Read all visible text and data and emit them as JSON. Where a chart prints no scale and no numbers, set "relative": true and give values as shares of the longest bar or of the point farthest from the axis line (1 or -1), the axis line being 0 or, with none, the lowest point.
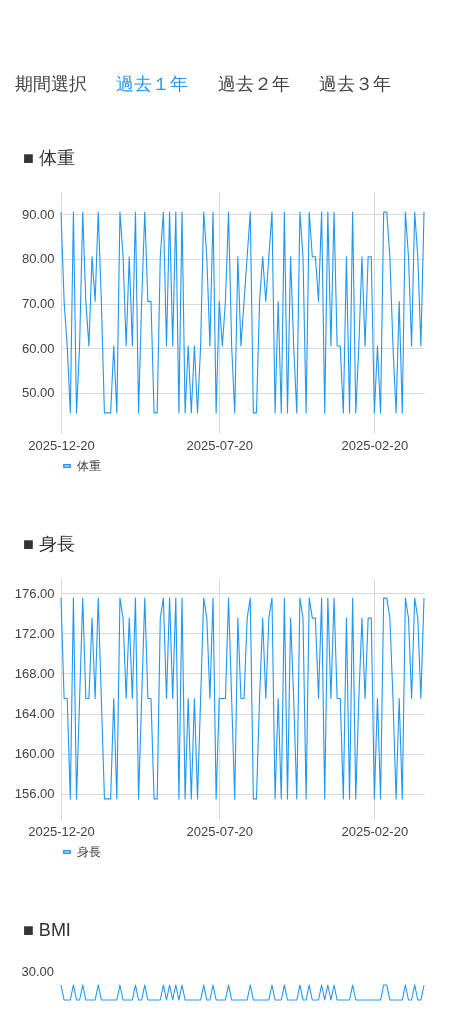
{
  "chart_data": [
    {
      "type": "other",
      "annotations": [
        "期間選択",
        "過去１年",
        "過去２年",
        "過去３年"
      ],
      "colors": [
        "#424242",
        "#2196f3",
        "#424242",
        "#424242"
      ]
    },
    {
      "type": "line",
      "title": "■ 体重",
      "x": [
        "2025-12-20",
        "2025-12-17",
        "2025-12-14",
        "2025-12-11",
        "2025-12-08",
        "2025-12-05",
        "2025-12-02",
        "2025-11-29",
        "2025-11-26",
        "2025-11-23",
        "2025-11-20",
        "2025-11-17",
        "2025-11-14",
        "2025-11-11",
        "2025-11-08",
        "2025-11-05",
        "2025-11-02",
        "2025-10-30",
        "2025-10-27",
        "2025-10-24",
        "2025-10-21",
        "2025-10-18",
        "2025-10-15",
        "2025-10-12",
        "2025-10-09",
        "2025-10-06",
        "2025-10-03",
        "2025-09-30",
        "2025-09-27",
        "2025-09-24",
        "2025-09-21",
        "2025-09-18",
        "2025-09-15",
        "2025-09-12",
        "2025-09-09",
        "2025-09-06",
        "2025-09-03",
        "2025-08-31",
        "2025-08-28",
        "2025-08-25",
        "2025-08-22",
        "2025-08-19",
        "2025-08-16",
        "2025-08-13",
        "2025-08-10",
        "2025-08-07",
        "2025-08-04",
        "2025-08-01",
        "2025-07-29",
        "2025-07-26",
        "2025-07-23",
        "2025-07-20",
        "2025-07-17",
        "2025-07-14",
        "2025-07-11",
        "2025-07-08",
        "2025-07-05",
        "2025-07-02",
        "2025-06-29",
        "2025-06-26",
        "2025-06-23",
        "2025-06-20",
        "2025-06-17",
        "2025-06-14",
        "2025-06-11",
        "2025-06-08",
        "2025-06-05",
        "2025-06-02",
        "2025-05-30",
        "2025-05-27",
        "2025-05-24",
        "2025-05-21",
        "2025-05-18",
        "2025-05-15",
        "2025-05-12",
        "2025-05-09",
        "2025-05-06",
        "2025-05-03",
        "2025-04-30",
        "2025-04-27",
        "2025-04-24",
        "2025-04-21",
        "2025-04-18",
        "2025-04-15",
        "2025-04-12",
        "2025-04-09",
        "2025-04-06",
        "2025-04-03",
        "2025-03-31",
        "2025-03-28",
        "2025-03-25",
        "2025-03-22",
        "2025-03-19",
        "2025-03-16",
        "2025-03-13",
        "2025-03-10",
        "2025-03-07",
        "2025-03-04",
        "2025-03-01",
        "2025-02-26",
        "2025-02-23",
        "2025-02-20",
        "2025-02-17",
        "2025-02-14",
        "2025-02-11",
        "2025-02-08",
        "2025-02-05",
        "2025-02-02",
        "2025-01-30",
        "2025-01-27",
        "2025-01-24",
        "2025-01-21",
        "2025-01-18",
        "2025-01-15",
        "2025-01-12",
        "2025-01-09",
        "2025-01-06",
        "2025-01-03"
      ],
      "xlim": [
        "2025-12-20",
        "2025-01-03"
      ],
      "xticks": [
        "2025-12-20",
        "2025-07-20",
        "2025-02-20"
      ],
      "ylim": [
        41,
        95
      ],
      "yticks": [
        {
          "value": 50,
          "label": "50.00"
        },
        {
          "value": 60,
          "label": "60.00"
        },
        {
          "value": 70,
          "label": "70.00"
        },
        {
          "value": 80,
          "label": "80.00"
        },
        {
          "value": 90,
          "label": "90.00"
        }
      ],
      "grid": true,
      "legend": "bottom",
      "series": [
        {
          "name": "体重",
          "color": "#2196f3",
          "values": [
            90.5,
            70.5,
            60.5,
            45.5,
            90.5,
            45.5,
            60.5,
            90.5,
            70.5,
            60.5,
            80.5,
            70.5,
            90.5,
            70.5,
            45.5,
            45.5,
            45.5,
            60.5,
            45.5,
            90.5,
            80.5,
            60.5,
            80.5,
            60.5,
            90.5,
            45.5,
            70.5,
            90.5,
            70.5,
            70.5,
            45.5,
            45.5,
            80.5,
            90.5,
            60.5,
            90.5,
            60.5,
            90.5,
            45.5,
            90.5,
            45.5,
            60.5,
            45.5,
            60.5,
            45.5,
            60.5,
            90.5,
            80.5,
            60.5,
            90.5,
            45.5,
            70.5,
            60.5,
            70.5,
            90.5,
            60.5,
            45.5,
            80.5,
            60.5,
            70.5,
            80.5,
            90.5,
            45.5,
            45.5,
            70.5,
            80.5,
            70.5,
            80.5,
            90.5,
            45.5,
            70.5,
            45.5,
            90.5,
            45.5,
            80.5,
            60.5,
            45.5,
            90.5,
            80.5,
            45.5,
            90.5,
            80.5,
            80.5,
            70.5,
            90.5,
            45.5,
            90.5,
            60.5,
            90.5,
            60.5,
            60.5,
            45.5,
            80.5,
            45.5,
            90.5,
            45.5,
            60.5,
            80.5,
            60.5,
            80.5,
            80.5,
            45.5,
            60.5,
            45.5,
            90.5,
            90.5,
            80.5,
            60.5,
            45.5,
            70.5,
            45.5,
            90.5,
            80.5,
            60.5,
            90.5,
            80.5,
            60.5,
            90.5
          ]
        }
      ]
    },
    {
      "type": "line",
      "title": "■ 身長",
      "x": [
        "2025-12-20",
        "2025-12-17",
        "2025-12-14",
        "2025-12-11",
        "2025-12-08",
        "2025-12-05",
        "2025-12-02",
        "2025-11-29",
        "2025-11-26",
        "2025-11-23",
        "2025-11-20",
        "2025-11-17",
        "2025-11-14",
        "2025-11-11",
        "2025-11-08",
        "2025-11-05",
        "2025-11-02",
        "2025-10-30",
        "2025-10-27",
        "2025-10-24",
        "2025-10-21",
        "2025-10-18",
        "2025-10-15",
        "2025-10-12",
        "2025-10-09",
        "2025-10-06",
        "2025-10-03",
        "2025-09-30",
        "2025-09-27",
        "2025-09-24",
        "2025-09-21",
        "2025-09-18",
        "2025-09-15",
        "2025-09-12",
        "2025-09-09",
        "2025-09-06",
        "2025-09-03",
        "2025-08-31",
        "2025-08-28",
        "2025-08-25",
        "2025-08-22",
        "2025-08-19",
        "2025-08-16",
        "2025-08-13",
        "2025-08-10",
        "2025-08-07",
        "2025-08-04",
        "2025-08-01",
        "2025-07-29",
        "2025-07-26",
        "2025-07-23",
        "2025-07-20",
        "2025-07-17",
        "2025-07-14",
        "2025-07-11",
        "2025-07-08",
        "2025-07-05",
        "2025-07-02",
        "2025-06-29",
        "2025-06-26",
        "2025-06-23",
        "2025-06-20",
        "2025-06-17",
        "2025-06-14",
        "2025-06-11",
        "2025-06-08",
        "2025-06-05",
        "2025-06-02",
        "2025-05-30",
        "2025-05-27",
        "2025-05-24",
        "2025-05-21",
        "2025-05-18",
        "2025-05-15",
        "2025-05-12",
        "2025-05-09",
        "2025-05-06",
        "2025-05-03",
        "2025-04-30",
        "2025-04-27",
        "2025-04-24",
        "2025-04-21",
        "2025-04-18",
        "2025-04-15",
        "2025-04-12",
        "2025-04-09",
        "2025-04-06",
        "2025-04-03",
        "2025-03-31",
        "2025-03-28",
        "2025-03-25",
        "2025-03-22",
        "2025-03-19",
        "2025-03-16",
        "2025-03-13",
        "2025-03-10",
        "2025-03-07",
        "2025-03-04",
        "2025-03-01",
        "2025-02-26",
        "2025-02-23",
        "2025-02-20",
        "2025-02-17",
        "2025-02-14",
        "2025-02-11",
        "2025-02-08",
        "2025-02-05",
        "2025-02-02",
        "2025-01-30",
        "2025-01-27",
        "2025-01-24",
        "2025-01-21",
        "2025-01-18",
        "2025-01-15",
        "2025-01-12",
        "2025-01-09",
        "2025-01-06",
        "2025-01-03"
      ],
      "xlim": [
        "2025-12-20",
        "2025-01-03"
      ],
      "xticks": [
        "2025-12-20",
        "2025-07-20",
        "2025-02-20"
      ],
      "ylim": [
        153.5,
        177.5
      ],
      "yticks": [
        {
          "value": 156,
          "label": "156.00"
        },
        {
          "value": 160,
          "label": "160.00"
        },
        {
          "value": 164,
          "label": "164.00"
        },
        {
          "value": 168,
          "label": "168.00"
        },
        {
          "value": 172,
          "label": "172.00"
        },
        {
          "value": 176,
          "label": "176.00"
        }
      ],
      "grid": true,
      "legend": "bottom",
      "series": [
        {
          "name": "身長",
          "color": "#2196f3",
          "values": [
            175.5,
            165.5,
            165.5,
            155.5,
            175.5,
            155.5,
            165.5,
            175.5,
            165.5,
            165.5,
            173.5,
            165.5,
            175.5,
            165.5,
            155.5,
            155.5,
            155.5,
            165.5,
            155.5,
            175.5,
            173.5,
            165.5,
            173.5,
            165.5,
            175.5,
            155.5,
            165.5,
            175.5,
            165.5,
            165.5,
            155.5,
            155.5,
            173.5,
            175.5,
            165.5,
            175.5,
            165.5,
            175.5,
            155.5,
            175.5,
            155.5,
            165.5,
            155.5,
            165.5,
            155.5,
            165.5,
            175.5,
            173.5,
            165.5,
            175.5,
            155.5,
            165.5,
            165.5,
            165.5,
            175.5,
            165.5,
            155.5,
            173.5,
            165.5,
            165.5,
            173.5,
            175.5,
            155.5,
            155.5,
            165.5,
            173.5,
            165.5,
            173.5,
            175.5,
            155.5,
            165.5,
            155.5,
            175.5,
            155.5,
            173.5,
            165.5,
            155.5,
            175.5,
            173.5,
            155.5,
            175.5,
            173.5,
            173.5,
            165.5,
            175.5,
            155.5,
            175.5,
            165.5,
            175.5,
            165.5,
            165.5,
            155.5,
            173.5,
            155.5,
            175.5,
            155.5,
            165.5,
            173.5,
            165.5,
            173.5,
            173.5,
            155.5,
            165.5,
            155.5,
            175.5,
            175.5,
            173.5,
            165.5,
            155.5,
            165.5,
            155.5,
            175.5,
            173.5,
            165.5,
            175.5,
            173.5,
            165.5,
            175.5
          ]
        }
      ]
    },
    {
      "type": "line",
      "title": "■ BMI",
      "relative": true,
      "categories": [
        null,
        null,
        null,
        null,
        null,
        null,
        null,
        null,
        null,
        null,
        null,
        null,
        null,
        null,
        null,
        null,
        null,
        null,
        null,
        null,
        null,
        null,
        null,
        null,
        null,
        null,
        null,
        null,
        null,
        null,
        null,
        null,
        null,
        null,
        null,
        null,
        null,
        null,
        null,
        null,
        null,
        null,
        null,
        null,
        null,
        null,
        null,
        null,
        null,
        null,
        null,
        null,
        null,
        null,
        null,
        null,
        null,
        null,
        null,
        null,
        null,
        null,
        null,
        null,
        null,
        null,
        null,
        null,
        null,
        null,
        null,
        null,
        null,
        null,
        null,
        null,
        null,
        null,
        null,
        null,
        null,
        null,
        null,
        null,
        null,
        null,
        null,
        null,
        null,
        null,
        null,
        null,
        null,
        null,
        null,
        null,
        null,
        null,
        null,
        null,
        null,
        null,
        null,
        null,
        null,
        null,
        null,
        null,
        null,
        null,
        null,
        null,
        null,
        null,
        null,
        null,
        null,
        null
      ],
      "annotations": [
        "30.00"
      ],
      "series": [
        {
          "color": "#2196f3",
          "values": [
            1,
            0,
            0,
            0,
            1,
            0,
            0,
            1,
            0,
            0,
            0,
            0,
            1,
            0,
            0,
            0,
            0,
            0,
            0,
            1,
            0,
            0,
            0,
            0,
            1,
            0,
            0,
            1,
            0,
            0,
            0,
            0,
            0,
            1,
            0,
            1,
            0,
            1,
            0,
            1,
            0,
            0,
            0,
            0,
            0,
            0,
            1,
            0,
            0,
            1,
            0,
            0,
            0,
            0,
            1,
            0,
            0,
            0,
            0,
            0,
            0,
            1,
            0,
            0,
            0,
            0,
            0,
            0,
            1,
            0,
            0,
            0,
            1,
            0,
            0,
            0,
            0,
            1,
            0,
            0,
            1,
            0,
            0,
            0,
            1,
            0,
            1,
            0,
            1,
            0,
            0,
            0,
            0,
            0,
            1,
            0,
            0,
            0,
            0,
            0,
            0,
            0,
            0,
            0,
            1,
            1,
            0,
            0,
            0,
            0,
            0,
            1,
            0,
            0,
            1,
            0,
            0,
            1
          ]
        }
      ]
    }
  ]
}
